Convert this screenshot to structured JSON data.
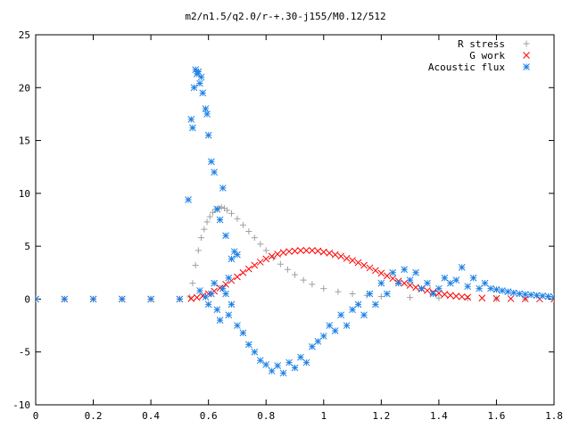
{
  "chart_data": {
    "type": "scatter",
    "title": "m2/n1.5/q2.0/r-+.30-j155/M0.12/512",
    "xlabel": "",
    "ylabel": "",
    "xlim": [
      0,
      1.8
    ],
    "ylim": [
      -10,
      25
    ],
    "x_ticks": [
      "0",
      "0.2",
      "0.4",
      "0.6",
      "0.8",
      "1",
      "1.2",
      "1.4",
      "1.6",
      "1.8"
    ],
    "y_ticks": [
      "-10",
      "-5",
      "0",
      "5",
      "10",
      "15",
      "20",
      "25"
    ],
    "grid": false,
    "legend_position": "top-right",
    "series": [
      {
        "name": "R stress",
        "marker": "plus",
        "color": "#a0a0a0",
        "x": [
          0.0,
          0.1,
          0.2,
          0.3,
          0.4,
          0.5,
          0.535,
          0.545,
          0.555,
          0.565,
          0.575,
          0.585,
          0.595,
          0.605,
          0.615,
          0.625,
          0.635,
          0.645,
          0.655,
          0.665,
          0.68,
          0.7,
          0.72,
          0.74,
          0.76,
          0.78,
          0.8,
          0.825,
          0.85,
          0.875,
          0.9,
          0.93,
          0.96,
          1.0,
          1.05,
          1.1,
          1.15,
          1.2,
          1.3,
          1.4,
          1.5,
          1.6,
          1.7,
          1.8
        ],
        "y": [
          0.0,
          0.0,
          0.0,
          0.0,
          0.0,
          0.0,
          0.2,
          1.5,
          3.2,
          4.6,
          5.8,
          6.6,
          7.3,
          7.8,
          8.2,
          8.5,
          8.6,
          8.7,
          8.6,
          8.4,
          8.1,
          7.6,
          7.0,
          6.4,
          5.8,
          5.2,
          4.6,
          3.9,
          3.3,
          2.8,
          2.3,
          1.8,
          1.4,
          1.0,
          0.7,
          0.5,
          0.35,
          0.25,
          0.15,
          0.1,
          0.06,
          0.04,
          0.02,
          0.01
        ]
      },
      {
        "name": "G work",
        "marker": "cross",
        "color": "#ff0000",
        "x": [
          0.0,
          0.1,
          0.2,
          0.3,
          0.4,
          0.5,
          0.54,
          0.56,
          0.58,
          0.6,
          0.62,
          0.64,
          0.66,
          0.68,
          0.7,
          0.72,
          0.74,
          0.76,
          0.78,
          0.8,
          0.82,
          0.84,
          0.86,
          0.88,
          0.9,
          0.92,
          0.94,
          0.96,
          0.98,
          1.0,
          1.02,
          1.04,
          1.06,
          1.08,
          1.1,
          1.12,
          1.14,
          1.16,
          1.18,
          1.2,
          1.22,
          1.24,
          1.26,
          1.28,
          1.3,
          1.32,
          1.34,
          1.36,
          1.38,
          1.4,
          1.42,
          1.44,
          1.46,
          1.48,
          1.5,
          1.55,
          1.6,
          1.65,
          1.7,
          1.75,
          1.8
        ],
        "y": [
          0.0,
          0.0,
          0.0,
          0.0,
          0.0,
          0.0,
          0.05,
          0.15,
          0.3,
          0.5,
          0.75,
          1.05,
          1.4,
          1.75,
          2.1,
          2.5,
          2.85,
          3.2,
          3.5,
          3.8,
          4.05,
          4.25,
          4.4,
          4.5,
          4.55,
          4.6,
          4.6,
          4.6,
          4.55,
          4.45,
          4.35,
          4.2,
          4.05,
          3.85,
          3.65,
          3.45,
          3.2,
          2.95,
          2.7,
          2.45,
          2.2,
          1.95,
          1.7,
          1.5,
          1.3,
          1.1,
          0.95,
          0.8,
          0.65,
          0.55,
          0.45,
          0.35,
          0.28,
          0.22,
          0.17,
          0.1,
          0.06,
          0.04,
          0.02,
          0.01,
          0.0
        ]
      },
      {
        "name": "Acoustic flux",
        "marker": "star",
        "color": "#1e82e6",
        "x": [
          0.0,
          0.1,
          0.2,
          0.3,
          0.4,
          0.5,
          0.53,
          0.54,
          0.545,
          0.55,
          0.555,
          0.56,
          0.565,
          0.57,
          0.575,
          0.58,
          0.59,
          0.595,
          0.6,
          0.61,
          0.62,
          0.63,
          0.64,
          0.65,
          0.66,
          0.67,
          0.68,
          0.69,
          0.7,
          0.57,
          0.59,
          0.6,
          0.61,
          0.62,
          0.63,
          0.64,
          0.65,
          0.66,
          0.67,
          0.68,
          0.7,
          0.72,
          0.74,
          0.76,
          0.78,
          0.8,
          0.82,
          0.84,
          0.86,
          0.88,
          0.9,
          0.92,
          0.94,
          0.96,
          0.98,
          1.0,
          1.02,
          1.04,
          1.06,
          1.08,
          1.1,
          1.12,
          1.14,
          1.16,
          1.18,
          1.2,
          1.22,
          1.24,
          1.26,
          1.28,
          1.3,
          1.32,
          1.34,
          1.36,
          1.38,
          1.4,
          1.42,
          1.44,
          1.46,
          1.48,
          1.5,
          1.52,
          1.54,
          1.56,
          1.58,
          1.6,
          1.62,
          1.64,
          1.66,
          1.68,
          1.7,
          1.72,
          1.74,
          1.76,
          1.78,
          1.8
        ],
        "y": [
          0.0,
          0.0,
          0.0,
          0.0,
          0.0,
          0.0,
          9.4,
          17.0,
          16.2,
          20.0,
          21.7,
          21.3,
          21.5,
          20.4,
          21.0,
          19.5,
          18.0,
          17.5,
          15.5,
          13.0,
          12.0,
          8.5,
          7.5,
          10.5,
          6.0,
          2.0,
          3.8,
          4.5,
          4.2,
          0.8,
          0.2,
          -0.5,
          0.5,
          1.5,
          -1.0,
          -2.0,
          1.0,
          0.5,
          -1.5,
          -0.5,
          -2.5,
          -3.2,
          -4.3,
          -5.0,
          -5.8,
          -6.2,
          -6.8,
          -6.3,
          -7.0,
          -6.0,
          -6.5,
          -5.5,
          -6.0,
          -4.5,
          -4.0,
          -3.5,
          -2.5,
          -3.0,
          -1.5,
          -2.5,
          -1.0,
          -0.5,
          -1.5,
          0.5,
          -0.5,
          1.5,
          0.5,
          2.5,
          1.5,
          2.8,
          1.8,
          2.5,
          1.0,
          1.5,
          0.5,
          1.0,
          2.0,
          1.5,
          1.8,
          3.0,
          1.2,
          2.0,
          1.0,
          1.5,
          1.0,
          0.9,
          0.8,
          0.7,
          0.6,
          0.5,
          0.45,
          0.4,
          0.35,
          0.3,
          0.25,
          0.2
        ]
      }
    ]
  }
}
